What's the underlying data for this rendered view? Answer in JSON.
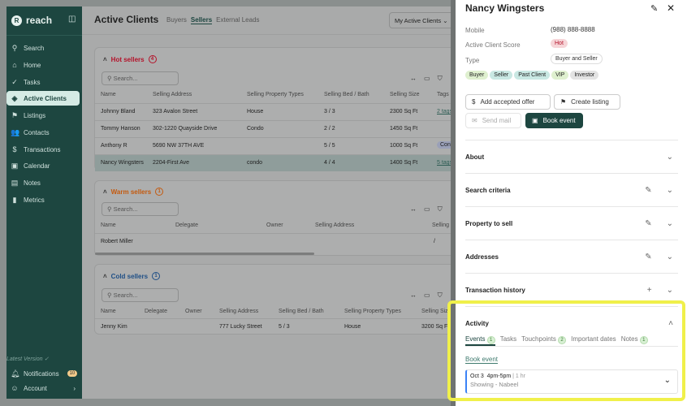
{
  "sidebar": {
    "app_name": "reach",
    "items": [
      {
        "label": "Search",
        "icon": "search-icon"
      },
      {
        "label": "Home",
        "icon": "home-icon"
      },
      {
        "label": "Tasks",
        "icon": "check-icon"
      },
      {
        "label": "Active Clients",
        "icon": "tag-icon",
        "active": true
      },
      {
        "label": "Listings",
        "icon": "flag-icon"
      },
      {
        "label": "Contacts",
        "icon": "people-icon"
      },
      {
        "label": "Transactions",
        "icon": "dollar-icon"
      },
      {
        "label": "Calendar",
        "icon": "calendar-icon"
      },
      {
        "label": "Notes",
        "icon": "note-icon"
      },
      {
        "label": "Metrics",
        "icon": "bar-chart-icon"
      }
    ],
    "version": "Latest Version ✓",
    "notifications": "Notifications",
    "notif_count": "10",
    "account": "Account"
  },
  "header": {
    "title": "Active Clients",
    "tabs": [
      "Buyers",
      "Sellers",
      "External Leads"
    ],
    "active_tab": "Sellers",
    "filter": "My Active Clients"
  },
  "hot": {
    "title": "Hot sellers",
    "count": "4",
    "search_placeholder": "Search...",
    "columns": [
      "Name",
      "Selling Address",
      "Selling Property Types",
      "Selling Bed / Bath",
      "Selling Size",
      "Tags"
    ],
    "rows": [
      [
        "Johnny Bland",
        "323 Avalon Street",
        "House",
        "3 / 3",
        "2300 Sq Ft",
        "2 tags"
      ],
      [
        "Tommy Hanson",
        "302-1220 Quayside Drive",
        "Condo",
        "2 / 2",
        "1450 Sq Ft",
        ""
      ],
      [
        "Anthony R",
        "5690 NW 37TH AVE",
        "",
        "5 / 5",
        "1000 Sq Ft",
        "Condo"
      ],
      [
        "Nancy Wingsters",
        "2204-First Ave",
        "condo",
        "4 / 4",
        "1400 Sq Ft",
        "5 tags"
      ]
    ]
  },
  "warm": {
    "title": "Warm sellers",
    "count": "1",
    "search_placeholder": "Search...",
    "columns": [
      "Name",
      "Delegate",
      "Owner",
      "Selling Address",
      "Selling"
    ],
    "rows": [
      [
        "Robert Miller",
        "",
        "",
        "",
        "/"
      ]
    ]
  },
  "cold": {
    "title": "Cold sellers",
    "count": "1",
    "search_placeholder": "Search...",
    "columns": [
      "Name",
      "Delegate",
      "Owner",
      "Selling Address",
      "Selling Bed / Bath",
      "Selling Property Types",
      "Selling Size"
    ],
    "rows": [
      [
        "Jenny Kim",
        "",
        "",
        "777 Lucky Street",
        "5 / 3",
        "House",
        "3200 Sq Ft"
      ]
    ]
  },
  "panel": {
    "name": "Nancy Wingsters",
    "mobile_label": "Mobile",
    "mobile": "(988) 888-8888",
    "score_label": "Active Client Score",
    "score": "Hot",
    "type_label": "Type",
    "type": "Buyer and Seller",
    "tags": [
      {
        "label": "Buyer",
        "color": "#dff0cf"
      },
      {
        "label": "Seller",
        "color": "#c9e8e3"
      },
      {
        "label": "Past Client",
        "color": "#c9e8e3"
      },
      {
        "label": "VIP",
        "color": "#dff0cf"
      },
      {
        "label": "Investor",
        "color": "#e3e3e3"
      }
    ],
    "buttons": {
      "offer": "Add accepted offer",
      "listing": "Create listing",
      "mail": "Send mail",
      "book": "Book event"
    },
    "sections": [
      "About",
      "Search criteria",
      "Property to sell",
      "Addresses",
      "Transaction history"
    ],
    "activity": {
      "title": "Activity",
      "tabs": [
        {
          "label": "Events",
          "count": "1"
        },
        {
          "label": "Tasks"
        },
        {
          "label": "Touchpoints",
          "count": "2"
        },
        {
          "label": "Important dates"
        },
        {
          "label": "Notes",
          "count": "1"
        }
      ],
      "book_link": "Book event",
      "event": {
        "date": "Oct 3",
        "time": "4pm-5pm",
        "duration": "1 hr",
        "title": "Showing - Nabeel"
      }
    }
  }
}
